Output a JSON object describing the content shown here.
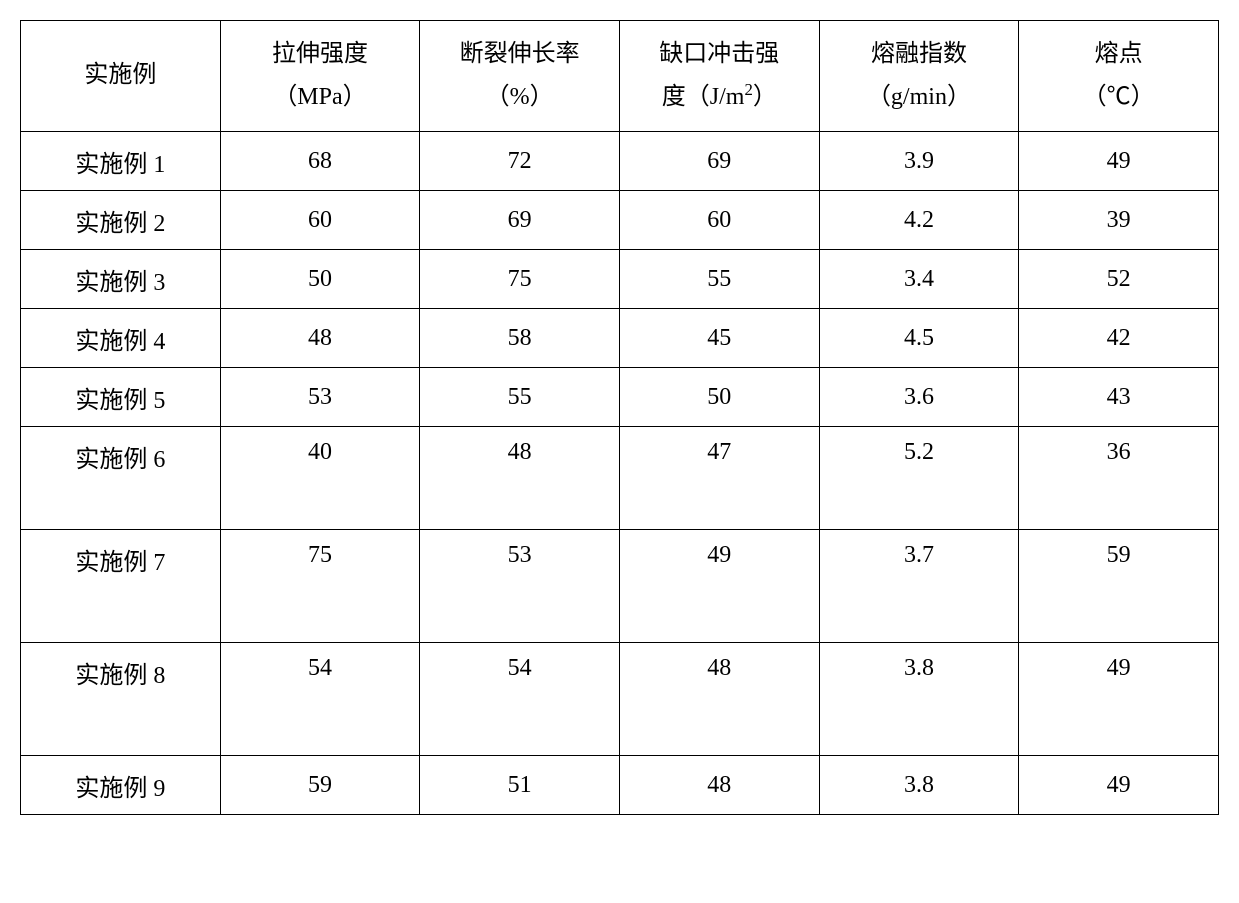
{
  "table": {
    "type": "table",
    "background_color": "#ffffff",
    "border_color": "#000000",
    "font_family": "SimSun",
    "font_size_pt": 18,
    "text_color": "#000000",
    "columns": [
      {
        "line1": "实施例",
        "line2": ""
      },
      {
        "line1": "拉伸强度",
        "line2": "（MPa）"
      },
      {
        "line1": "断裂伸长率",
        "line2": "（%）"
      },
      {
        "line1": "缺口冲击强",
        "line2_pre": "度（J/m",
        "line2_sup": "2",
        "line2_post": "）"
      },
      {
        "line1": "熔融指数",
        "line2": "（g/min）"
      },
      {
        "line1": "熔点",
        "line2": "（℃）"
      }
    ],
    "rows": [
      {
        "label": "实施例 1",
        "cells": [
          "68",
          "72",
          "69",
          "3.9",
          "49"
        ],
        "tall": false
      },
      {
        "label": "实施例 2",
        "cells": [
          "60",
          "69",
          "60",
          "4.2",
          "39"
        ],
        "tall": false
      },
      {
        "label": "实施例 3",
        "cells": [
          "50",
          "75",
          "55",
          "3.4",
          "52"
        ],
        "tall": false
      },
      {
        "label": "实施例 4",
        "cells": [
          "48",
          "58",
          "45",
          "4.5",
          "42"
        ],
        "tall": false
      },
      {
        "label": "实施例 5",
        "cells": [
          "53",
          "55",
          "50",
          "3.6",
          "43"
        ],
        "tall": false
      },
      {
        "label": "实施例 6",
        "cells": [
          "40",
          "48",
          "47",
          "5.2",
          "36"
        ],
        "tall": true
      },
      {
        "label": "实施例 7",
        "cells": [
          "75",
          "53",
          "49",
          "3.7",
          "59"
        ],
        "taller": true
      },
      {
        "label": "实施例 8",
        "cells": [
          "54",
          "54",
          "48",
          "3.8",
          "49"
        ],
        "taller": true
      },
      {
        "label": "实施例 9",
        "cells": [
          "59",
          "51",
          "48",
          "3.8",
          "49"
        ],
        "tall": false
      }
    ]
  }
}
